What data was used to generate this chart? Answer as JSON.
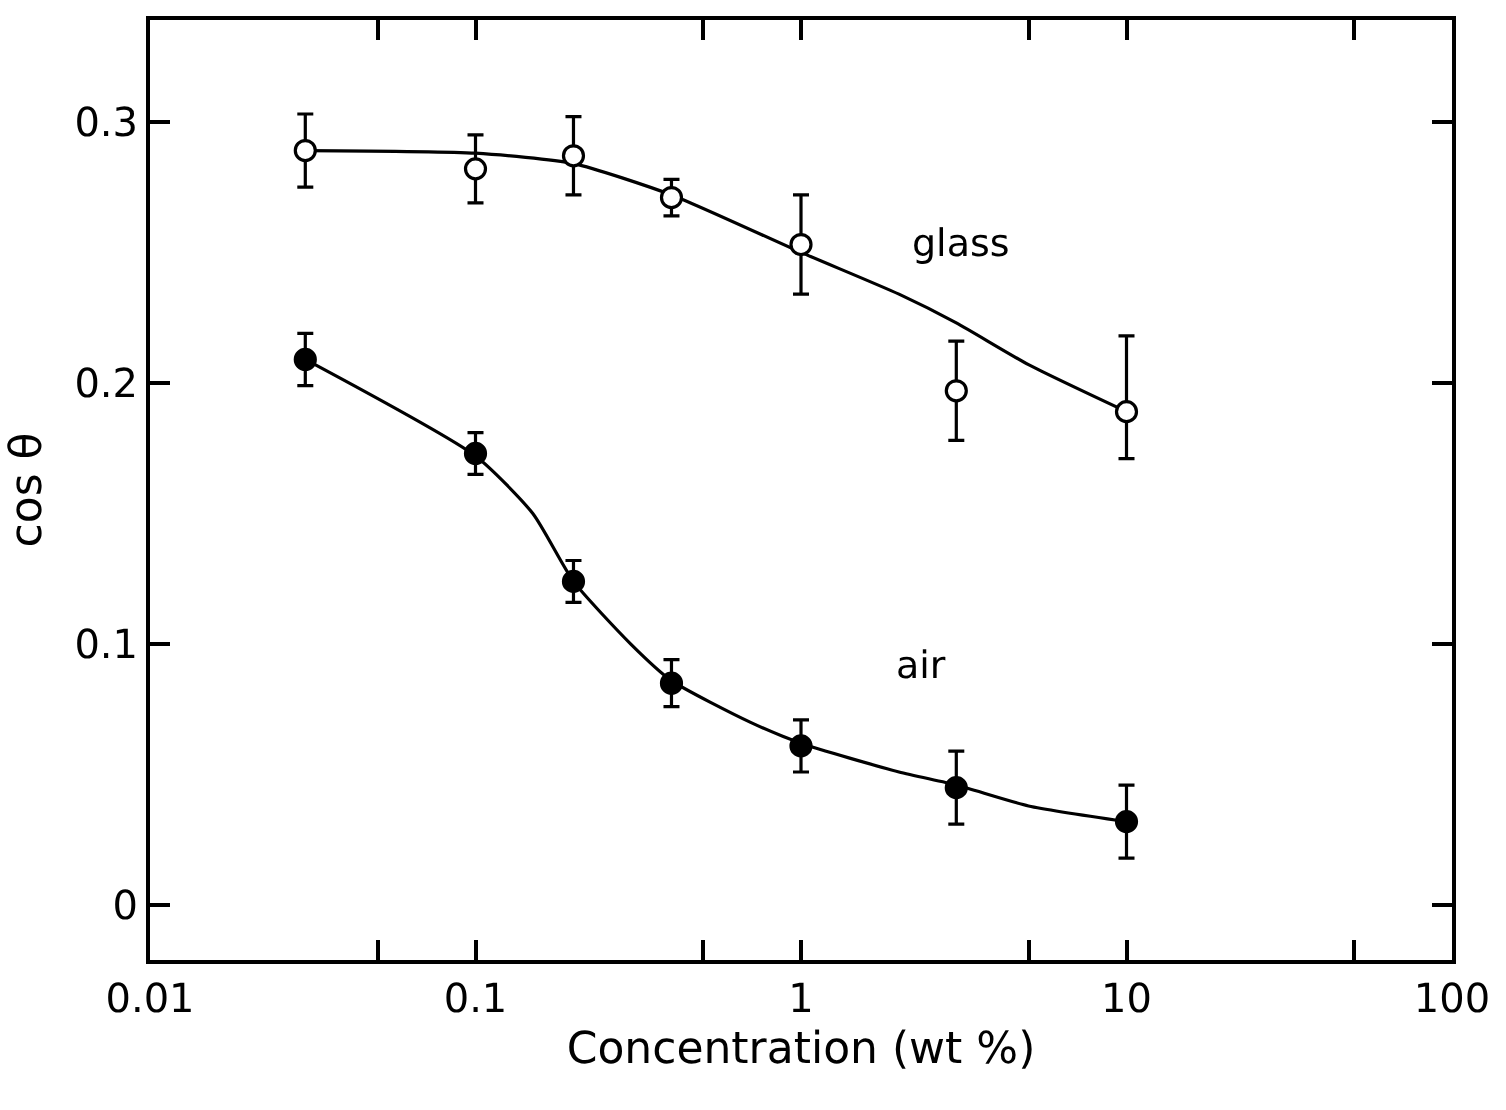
{
  "chart_data": {
    "type": "scatter",
    "xlabel": "Concentration (wt %)",
    "ylabel": "cos θ",
    "log": "x",
    "marker": "circle",
    "grid": false,
    "legend": false,
    "xlim": [
      0.01,
      100
    ],
    "xticks": [
      0.01,
      {
        "value": 0.05,
        "label": null
      },
      0.1,
      {
        "value": 0.5,
        "label": null
      },
      1,
      {
        "value": 5,
        "label": null
      },
      10,
      {
        "value": 50,
        "label": null
      },
      100
    ],
    "ylim": [
      -0.021,
      0.339
    ],
    "yticks": [
      0,
      0.1,
      0.2,
      0.3
    ],
    "series": [
      {
        "name": "glass",
        "color": "#ffffff",
        "x": [
          0.03,
          0.1,
          0.2,
          0.4,
          1,
          3,
          10
        ],
        "values": [
          0.289,
          0.282,
          0.287,
          0.271,
          0.253,
          0.197,
          0.189
        ],
        "errors": [
          0.014,
          0.013,
          0.015,
          0.007,
          0.019,
          0.019,
          [
            0.171,
            0.218
          ]
        ]
      },
      {
        "name": "air",
        "color": "#000000",
        "x": [
          0.03,
          0.1,
          0.2,
          0.4,
          1,
          3,
          10
        ],
        "values": [
          0.209,
          0.173,
          0.124,
          0.085,
          0.061,
          0.045,
          0.032
        ],
        "errors": [
          0.01,
          0.008,
          0.008,
          0.009,
          0.01,
          0.014,
          0.014
        ]
      },
      {
        "type": "line",
        "marker": "none",
        "color": "#000000",
        "line_style": "solid",
        "x": [
          0.03,
          0.1,
          0.2,
          0.4,
          1,
          2,
          3,
          5,
          10
        ],
        "values": [
          0.289,
          0.288,
          0.284,
          0.272,
          0.25,
          0.234,
          0.223,
          0.207,
          0.189
        ]
      },
      {
        "type": "line",
        "marker": "none",
        "color": "#000000",
        "line_style": "solid",
        "x": [
          0.03,
          0.1,
          0.15,
          0.2,
          0.3,
          0.4,
          0.7,
          1,
          2,
          3,
          5,
          10
        ],
        "values": [
          0.209,
          0.172,
          0.15,
          0.124,
          0.1,
          0.086,
          0.07,
          0.062,
          0.051,
          0.046,
          0.038,
          0.032
        ]
      }
    ]
  }
}
